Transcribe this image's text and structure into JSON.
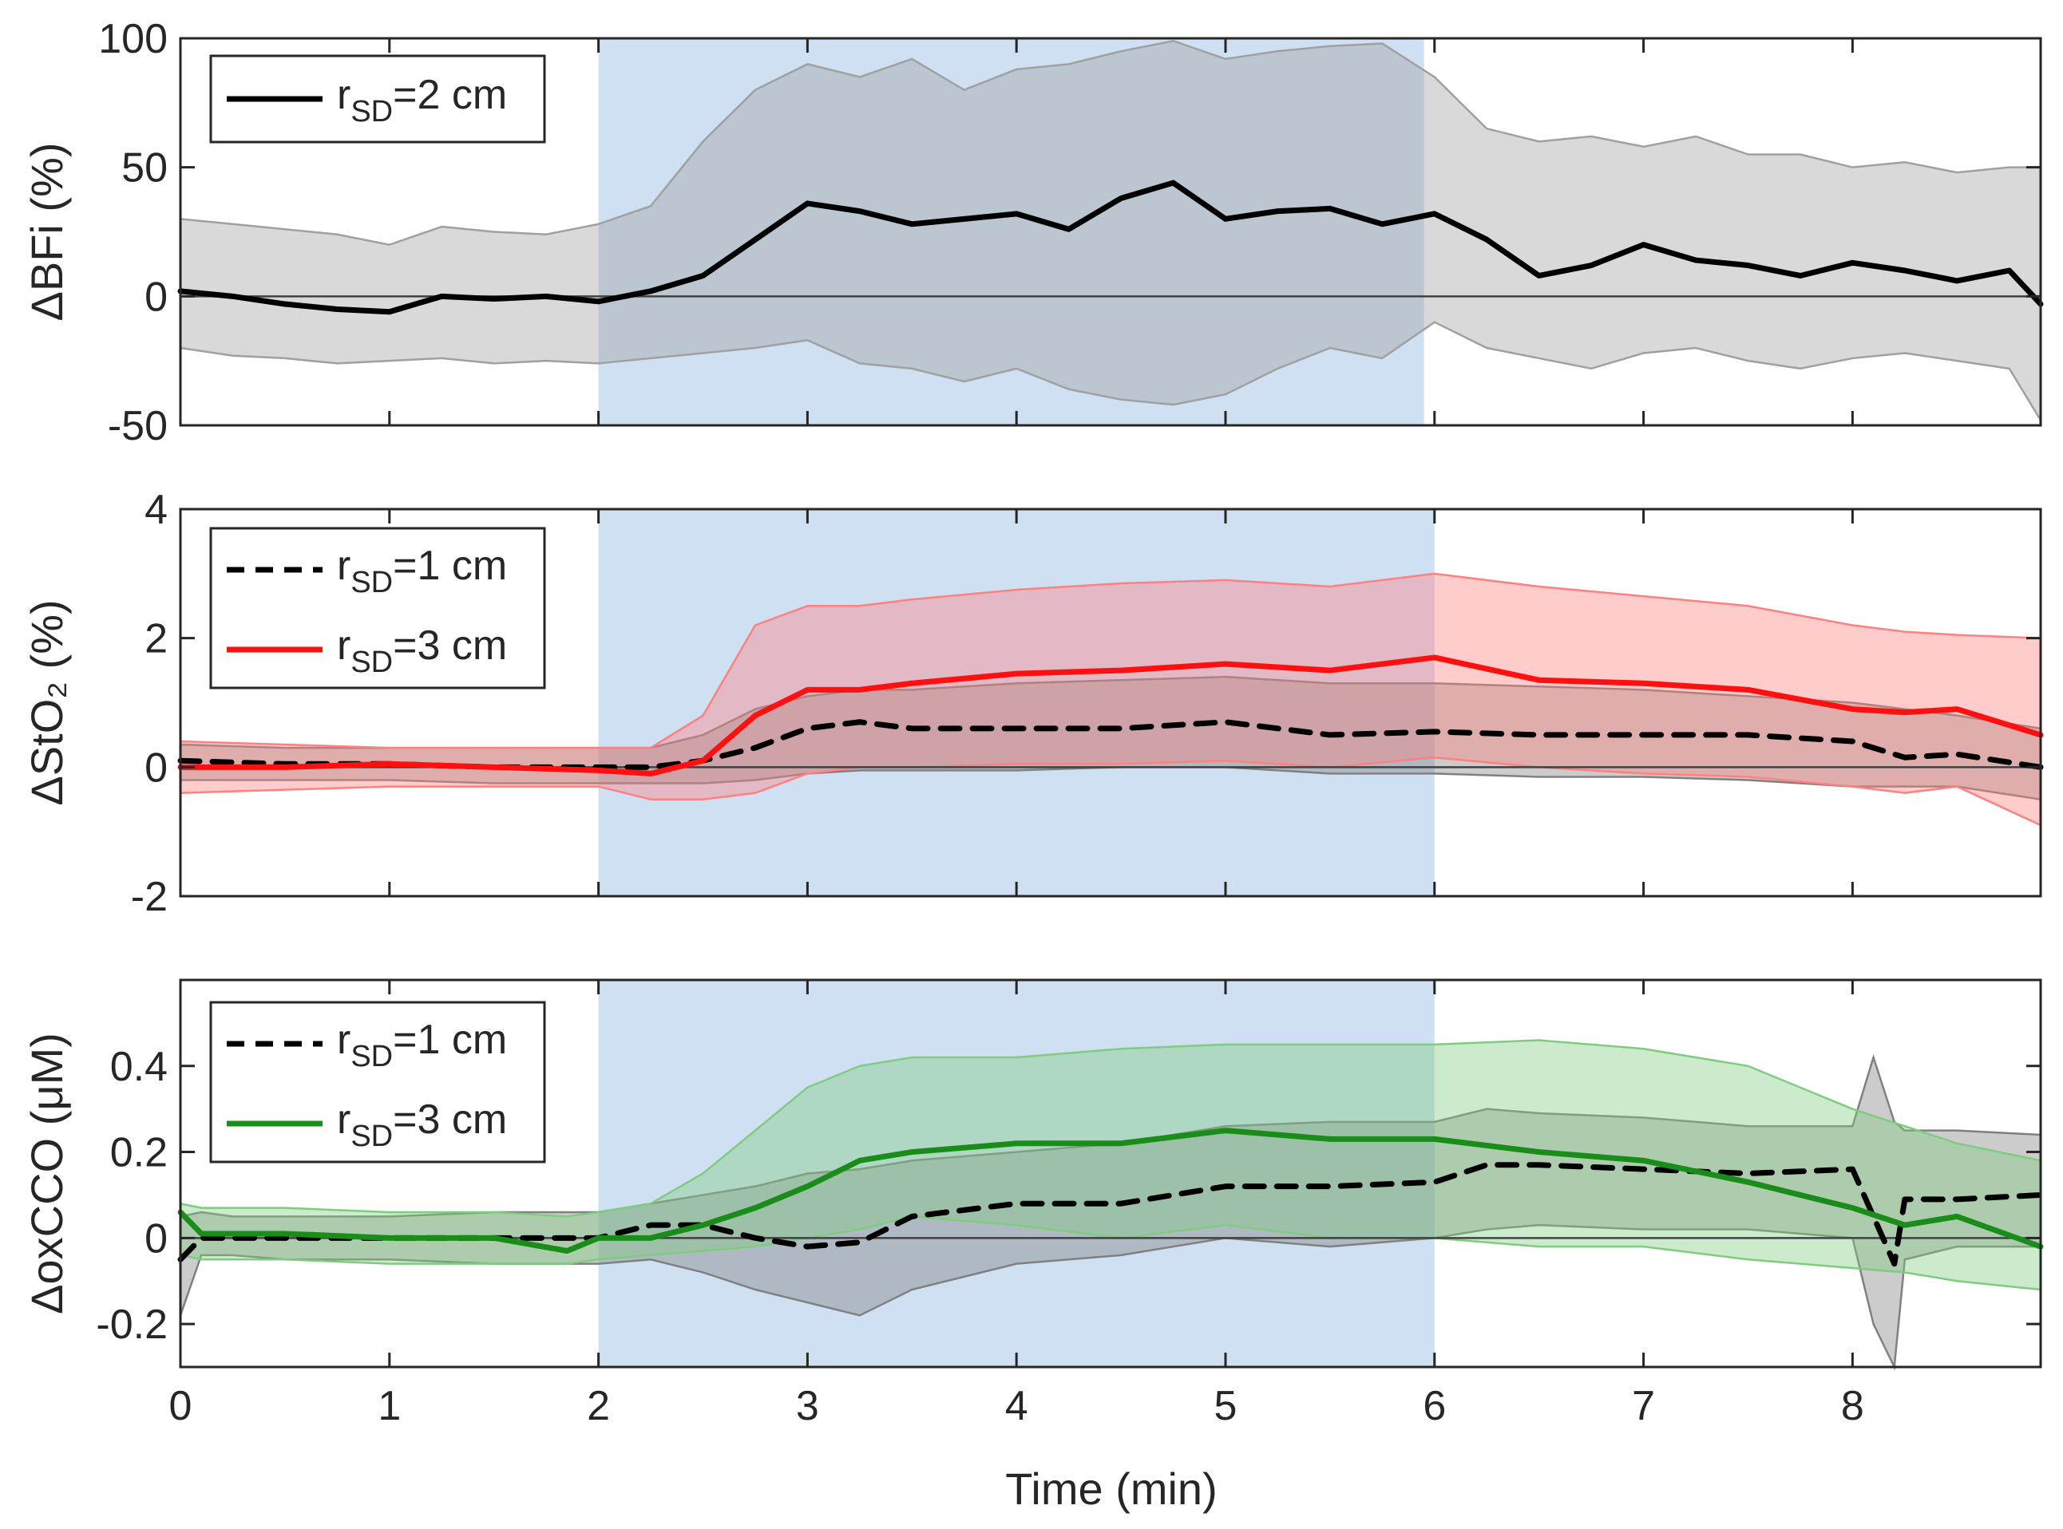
{
  "figure": {
    "xlabel": "Time (min)",
    "xlim": [
      0,
      8.9
    ],
    "xticks": [
      0,
      1,
      2,
      3,
      4,
      5,
      6,
      7,
      8
    ],
    "stim_window": [
      2,
      6
    ],
    "colors": {
      "stim": "#cfe0f2",
      "black": "#000000",
      "red": "#ff1010",
      "green": "#1a8c1a",
      "axis": "#262626"
    }
  },
  "chart_data": [
    {
      "type": "line",
      "ylabel": "ΔBFi (%)",
      "ylim": [
        -50,
        100
      ],
      "yticks": [
        -50,
        0,
        50,
        100
      ],
      "stim_x_end": 5.95,
      "grid": false,
      "legend_position": "top-left",
      "series": [
        {
          "name": "r_SD=2 cm",
          "legend_r": "r",
          "legend_sub": "SD",
          "legend_rest": "=2 cm",
          "color": "#000000",
          "dash": false,
          "band_color": "#a0a0a0",
          "x": [
            0,
            0.25,
            0.5,
            0.75,
            1,
            1.25,
            1.5,
            1.75,
            2,
            2.25,
            2.5,
            2.75,
            3,
            3.25,
            3.5,
            3.75,
            4,
            4.25,
            4.5,
            4.75,
            5,
            5.25,
            5.5,
            5.75,
            6,
            6.25,
            6.5,
            6.75,
            7,
            7.25,
            7.5,
            7.75,
            8,
            8.25,
            8.5,
            8.75,
            8.9
          ],
          "y": [
            2,
            0,
            -3,
            -5,
            -6,
            0,
            -1,
            0,
            -2,
            2,
            8,
            22,
            36,
            33,
            28,
            30,
            32,
            26,
            38,
            44,
            30,
            33,
            34,
            28,
            32,
            22,
            8,
            12,
            20,
            14,
            12,
            8,
            13,
            10,
            6,
            10,
            -3
          ],
          "upper": [
            30,
            28,
            26,
            24,
            20,
            27,
            25,
            24,
            28,
            35,
            60,
            80,
            90,
            85,
            92,
            80,
            88,
            90,
            95,
            99,
            92,
            95,
            97,
            98,
            85,
            65,
            60,
            62,
            58,
            62,
            55,
            55,
            50,
            52,
            48,
            50,
            50
          ],
          "lower": [
            -20,
            -23,
            -24,
            -26,
            -25,
            -24,
            -26,
            -25,
            -26,
            -24,
            -22,
            -20,
            -17,
            -26,
            -28,
            -33,
            -28,
            -36,
            -40,
            -42,
            -38,
            -28,
            -20,
            -24,
            -10,
            -20,
            -24,
            -28,
            -22,
            -20,
            -25,
            -28,
            -24,
            -22,
            -25,
            -28,
            -48
          ]
        }
      ]
    },
    {
      "type": "line",
      "ylabel": "ΔStO₂ (%)",
      "ylim": [
        -2,
        4
      ],
      "yticks": [
        -2,
        0,
        2,
        4
      ],
      "stim_x_end": 6.0,
      "grid": false,
      "legend_position": "top-left",
      "series": [
        {
          "name": "r_SD=1 cm",
          "legend_r": "r",
          "legend_sub": "SD",
          "legend_rest": "=1 cm",
          "color": "#000000",
          "dash": true,
          "band_color": "#808080",
          "x": [
            0,
            0.5,
            1,
            1.5,
            2,
            2.25,
            2.5,
            2.75,
            3,
            3.25,
            3.5,
            4,
            4.5,
            5,
            5.5,
            6,
            6.5,
            7,
            7.5,
            8,
            8.25,
            8.5,
            8.9
          ],
          "y": [
            0.1,
            0.05,
            0.05,
            0.0,
            0.0,
            0.0,
            0.1,
            0.3,
            0.6,
            0.7,
            0.6,
            0.6,
            0.6,
            0.7,
            0.5,
            0.55,
            0.5,
            0.5,
            0.5,
            0.4,
            0.15,
            0.2,
            0.0
          ],
          "upper": [
            0.35,
            0.3,
            0.3,
            0.3,
            0.3,
            0.3,
            0.5,
            0.9,
            1.1,
            1.2,
            1.2,
            1.3,
            1.35,
            1.4,
            1.3,
            1.3,
            1.25,
            1.2,
            1.1,
            1.0,
            0.9,
            0.8,
            0.6
          ],
          "lower": [
            -0.2,
            -0.2,
            -0.2,
            -0.25,
            -0.25,
            -0.25,
            -0.25,
            -0.2,
            -0.1,
            -0.05,
            -0.05,
            -0.05,
            0.0,
            0.0,
            -0.1,
            -0.1,
            -0.15,
            -0.15,
            -0.2,
            -0.3,
            -0.3,
            -0.3,
            -0.5
          ]
        },
        {
          "name": "r_SD=3 cm",
          "legend_r": "r",
          "legend_sub": "SD",
          "legend_rest": "=3 cm",
          "color": "#ff1010",
          "dash": false,
          "band_color": "#ff8080",
          "x": [
            0,
            0.5,
            1,
            1.5,
            2,
            2.25,
            2.5,
            2.75,
            3,
            3.25,
            3.5,
            4,
            4.5,
            5,
            5.5,
            6,
            6.5,
            7,
            7.5,
            8,
            8.25,
            8.5,
            8.9
          ],
          "y": [
            0.0,
            0.0,
            0.05,
            0.0,
            -0.05,
            -0.1,
            0.1,
            0.8,
            1.2,
            1.2,
            1.3,
            1.45,
            1.5,
            1.6,
            1.5,
            1.7,
            1.35,
            1.3,
            1.2,
            0.9,
            0.85,
            0.9,
            0.5
          ],
          "upper": [
            0.4,
            0.35,
            0.3,
            0.3,
            0.3,
            0.3,
            0.8,
            2.2,
            2.5,
            2.5,
            2.6,
            2.75,
            2.85,
            2.9,
            2.8,
            3.0,
            2.8,
            2.65,
            2.5,
            2.2,
            2.1,
            2.05,
            2.0
          ],
          "lower": [
            -0.4,
            -0.35,
            -0.3,
            -0.3,
            -0.3,
            -0.5,
            -0.5,
            -0.4,
            -0.1,
            0.0,
            0.0,
            0.05,
            0.05,
            0.1,
            0.0,
            0.15,
            0.0,
            -0.1,
            -0.15,
            -0.3,
            -0.4,
            -0.3,
            -0.9
          ]
        }
      ]
    },
    {
      "type": "line",
      "ylabel": "ΔoxCCO (μM)",
      "ylim": [
        -0.3,
        0.6
      ],
      "yticks": [
        -0.2,
        0,
        0.2,
        0.4
      ],
      "stim_x_end": 6.0,
      "grid": false,
      "legend_position": "top-left",
      "series": [
        {
          "name": "r_SD=1 cm",
          "legend_r": "r",
          "legend_sub": "SD",
          "legend_rest": "=1 cm",
          "color": "#000000",
          "dash": true,
          "band_color": "#808080",
          "x": [
            0,
            0.1,
            0.25,
            0.5,
            1,
            1.5,
            2,
            2.25,
            2.5,
            2.75,
            3,
            3.25,
            3.5,
            4,
            4.5,
            5,
            5.5,
            6,
            6.25,
            6.5,
            7,
            7.5,
            8,
            8.1,
            8.2,
            8.25,
            8.5,
            8.9
          ],
          "y": [
            -0.05,
            0.0,
            0.0,
            0.0,
            0.0,
            0.0,
            0.0,
            0.03,
            0.03,
            0.0,
            -0.02,
            -0.01,
            0.05,
            0.08,
            0.08,
            0.12,
            0.12,
            0.13,
            0.17,
            0.17,
            0.16,
            0.15,
            0.16,
            0.05,
            -0.06,
            0.09,
            0.09,
            0.1
          ],
          "upper": [
            0.05,
            0.06,
            0.05,
            0.05,
            0.05,
            0.06,
            0.06,
            0.08,
            0.1,
            0.12,
            0.15,
            0.16,
            0.18,
            0.2,
            0.22,
            0.26,
            0.27,
            0.27,
            0.3,
            0.29,
            0.28,
            0.26,
            0.26,
            0.42,
            0.27,
            0.25,
            0.25,
            0.24
          ],
          "lower": [
            -0.18,
            -0.04,
            -0.04,
            -0.05,
            -0.05,
            -0.06,
            -0.06,
            -0.05,
            -0.08,
            -0.12,
            -0.15,
            -0.18,
            -0.12,
            -0.06,
            -0.04,
            0.0,
            -0.02,
            0.0,
            0.02,
            0.03,
            0.02,
            0.02,
            0.0,
            -0.2,
            -0.3,
            -0.05,
            -0.02,
            -0.02
          ]
        },
        {
          "name": "r_SD=3 cm",
          "legend_r": "r",
          "legend_sub": "SD",
          "legend_rest": "=3 cm",
          "color": "#1a8c1a",
          "dash": false,
          "band_color": "#7fcc7f",
          "x": [
            0,
            0.1,
            0.5,
            1,
            1.5,
            1.85,
            2,
            2.25,
            2.5,
            2.75,
            3,
            3.25,
            3.5,
            4,
            4.5,
            5,
            5.5,
            6,
            6.5,
            7,
            7.5,
            8,
            8.25,
            8.5,
            8.9
          ],
          "y": [
            0.06,
            0.01,
            0.01,
            0.0,
            0.0,
            -0.03,
            0.0,
            0.0,
            0.03,
            0.07,
            0.12,
            0.18,
            0.2,
            0.22,
            0.22,
            0.25,
            0.23,
            0.23,
            0.2,
            0.18,
            0.13,
            0.07,
            0.03,
            0.05,
            -0.02
          ],
          "upper": [
            0.08,
            0.07,
            0.07,
            0.06,
            0.06,
            0.05,
            0.06,
            0.08,
            0.15,
            0.25,
            0.35,
            0.4,
            0.42,
            0.42,
            0.44,
            0.45,
            0.45,
            0.45,
            0.46,
            0.44,
            0.4,
            0.3,
            0.26,
            0.22,
            0.18
          ],
          "lower": [
            -0.04,
            -0.05,
            -0.05,
            -0.06,
            -0.06,
            -0.06,
            -0.05,
            -0.04,
            -0.03,
            -0.02,
            0.0,
            0.02,
            0.05,
            0.03,
            0.0,
            0.03,
            0.0,
            0.0,
            -0.02,
            -0.02,
            -0.05,
            -0.07,
            -0.08,
            -0.1,
            -0.12
          ]
        }
      ]
    }
  ]
}
